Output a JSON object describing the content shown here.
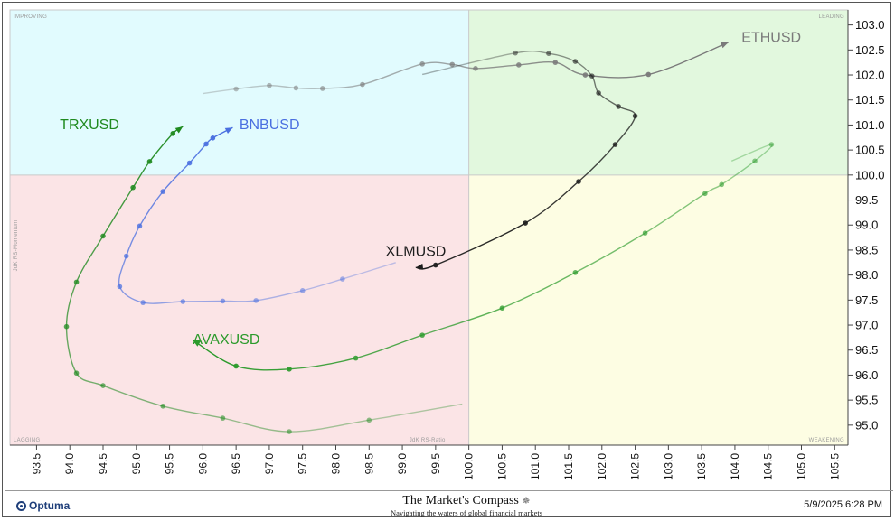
{
  "chart_data": {
    "type": "scatter",
    "subtype": "relative-rotation-graph",
    "xlabel": "JdK RS-Ratio",
    "ylabel": "JdK RS-Momentum",
    "xlim": [
      93.1,
      105.7
    ],
    "ylim": [
      94.6,
      103.3
    ],
    "center": [
      100.0,
      100.0
    ],
    "x_ticks": [
      "93.5",
      "94.0",
      "94.5",
      "95.0",
      "95.5",
      "96.0",
      "96.5",
      "97.0",
      "97.5",
      "98.0",
      "98.5",
      "99.0",
      "99.5",
      "100.0",
      "100.5",
      "101.0",
      "101.5",
      "102.0",
      "102.5",
      "103.0",
      "103.5",
      "104.0",
      "104.5",
      "105.0",
      "105.5"
    ],
    "y_ticks": [
      "103.0",
      "102.5",
      "102.0",
      "101.5",
      "101.0",
      "100.5",
      "100.0",
      "99.5",
      "99.0",
      "98.5",
      "98.0",
      "97.5",
      "97.0",
      "96.5",
      "96.0",
      "95.5",
      "95.0"
    ],
    "quadrants": {
      "improving": "IMPROVING",
      "leading": "LEADING",
      "lagging": "LAGGING",
      "weakening": "WEAKENING"
    },
    "quadrant_colors": {
      "improving": "#e1fbfe",
      "leading": "#e2f8de",
      "lagging": "#fbe4e6",
      "weakening": "#fdfde3"
    },
    "series": [
      {
        "name": "ETHUSD",
        "color": "#7a7a7a",
        "label_at": [
          104.1,
          102.66
        ],
        "points": [
          [
            96.5,
            101.72
          ],
          [
            97.0,
            101.79
          ],
          [
            97.4,
            101.74
          ],
          [
            97.8,
            101.73
          ],
          [
            98.4,
            101.81
          ],
          [
            99.3,
            102.22
          ],
          [
            99.75,
            102.21
          ],
          [
            100.1,
            102.13
          ],
          [
            100.75,
            102.2
          ],
          [
            101.3,
            102.25
          ],
          [
            101.75,
            102.0
          ],
          [
            102.7,
            102.01
          ],
          [
            103.9,
            102.65
          ]
        ],
        "tail": [
          [
            96.0,
            101.63
          ]
        ],
        "style": "tail-fade"
      },
      {
        "name": "XLMUSD",
        "color": "#1c1c1c",
        "label_at": [
          98.75,
          98.38
        ],
        "points": [
          [
            100.7,
            102.44
          ],
          [
            101.2,
            102.43
          ],
          [
            101.6,
            102.27
          ],
          [
            101.85,
            101.98
          ],
          [
            101.95,
            101.64
          ],
          [
            102.25,
            101.37
          ],
          [
            102.5,
            101.18
          ],
          [
            102.2,
            100.61
          ],
          [
            101.65,
            99.87
          ],
          [
            100.85,
            99.04
          ],
          [
            99.5,
            98.2
          ],
          [
            99.2,
            98.15
          ]
        ],
        "tail": [
          [
            99.3,
            102.01
          ]
        ],
        "style": "tail-fade"
      },
      {
        "name": "BNBUSD",
        "color": "#4a6fe0",
        "label_at": [
          96.55,
          100.92
        ],
        "points": [
          [
            98.1,
            97.92
          ],
          [
            97.5,
            97.69
          ],
          [
            96.8,
            97.49
          ],
          [
            96.3,
            97.48
          ],
          [
            95.7,
            97.47
          ],
          [
            95.1,
            97.45
          ],
          [
            94.75,
            97.77
          ],
          [
            94.85,
            98.38
          ],
          [
            95.05,
            98.98
          ],
          [
            95.4,
            99.67
          ],
          [
            95.8,
            100.24
          ],
          [
            96.05,
            100.62
          ],
          [
            96.15,
            100.74
          ],
          [
            96.45,
            100.95
          ]
        ],
        "tail": [
          [
            98.9,
            98.25
          ]
        ],
        "style": "tail-fade"
      },
      {
        "name": "TRXUSD",
        "color": "#1f8a1f",
        "label_at": [
          93.85,
          100.92
        ],
        "points": [
          [
            98.5,
            95.1
          ],
          [
            97.3,
            94.87
          ],
          [
            96.3,
            95.14
          ],
          [
            95.4,
            95.38
          ],
          [
            94.5,
            95.79
          ],
          [
            94.1,
            96.04
          ],
          [
            93.95,
            96.97
          ],
          [
            94.1,
            97.86
          ],
          [
            94.5,
            98.78
          ],
          [
            94.95,
            99.75
          ],
          [
            95.2,
            100.27
          ],
          [
            95.55,
            100.83
          ],
          [
            95.7,
            100.97
          ]
        ],
        "tail": [
          [
            99.9,
            95.42
          ]
        ],
        "style": "tail-fade"
      },
      {
        "name": "AVAXUSD",
        "color": "#2b9a2b",
        "label_at": [
          95.85,
          96.62
        ],
        "points": [
          [
            104.55,
            100.61
          ],
          [
            104.3,
            100.28
          ],
          [
            103.8,
            99.81
          ],
          [
            103.55,
            99.63
          ],
          [
            102.65,
            98.84
          ],
          [
            101.6,
            98.05
          ],
          [
            100.5,
            97.34
          ],
          [
            99.3,
            96.8
          ],
          [
            98.3,
            96.34
          ],
          [
            97.3,
            96.12
          ],
          [
            96.5,
            96.18
          ],
          [
            95.85,
            96.7
          ]
        ],
        "tail": [
          [
            103.95,
            100.28
          ]
        ],
        "style": "tail-fade"
      }
    ]
  },
  "footer": {
    "logo_text": "Optuma",
    "brand_title": "The Market's Compass",
    "brand_subtitle": "Navigating the waters of global financial markets",
    "timestamp": "5/9/2025 6:28 PM"
  }
}
